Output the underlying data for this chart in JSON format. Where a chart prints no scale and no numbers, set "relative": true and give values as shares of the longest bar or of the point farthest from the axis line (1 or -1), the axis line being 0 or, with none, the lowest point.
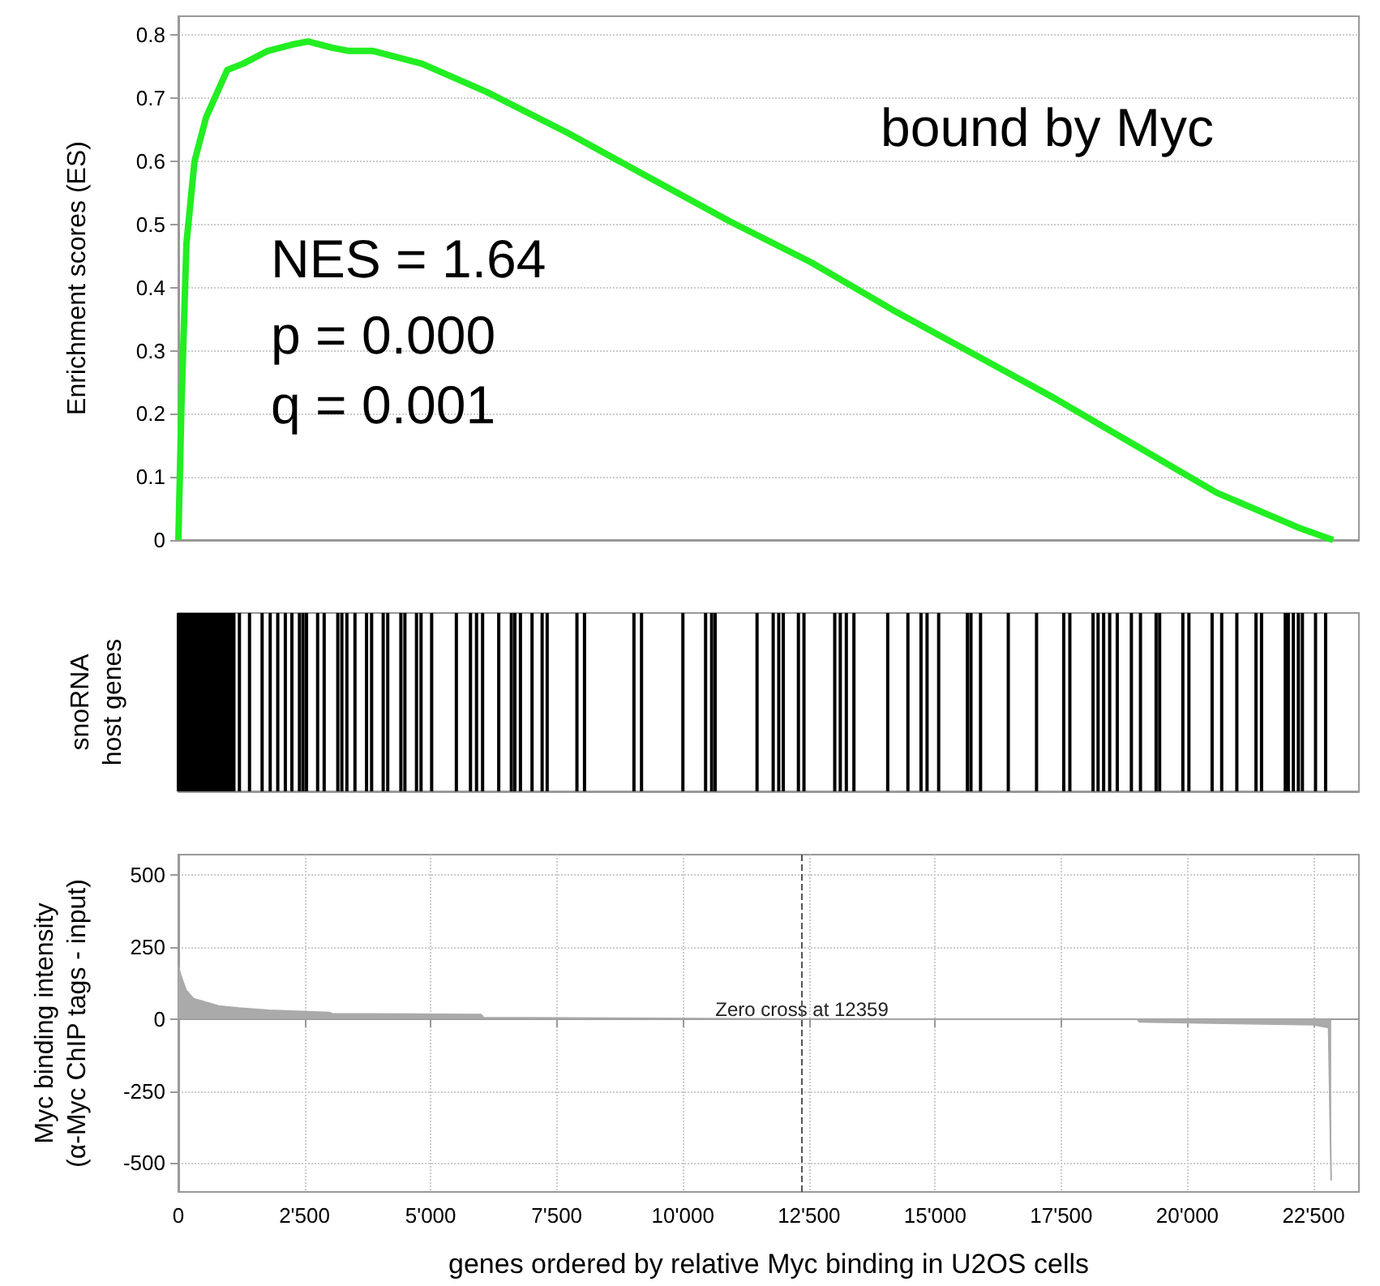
{
  "chart_data": [
    {
      "type": "line",
      "ylabel": "Enrichment scores (ES)",
      "annotations": [
        "bound by Myc",
        "NES = 1.64",
        "p = 0.000",
        "q = 0.001"
      ],
      "x": [
        0,
        60,
        160,
        320,
        550,
        970,
        1290,
        1770,
        2250,
        2570,
        3050,
        3380,
        3860,
        4820,
        6110,
        7720,
        9320,
        10930,
        12540,
        14150,
        15760,
        17360,
        18970,
        20580,
        22190,
        22890
      ],
      "series": [
        {
          "color": "#22ee22",
          "values": [
            0,
            0.21,
            0.47,
            0.6,
            0.67,
            0.745,
            0.755,
            0.775,
            0.785,
            0.79,
            0.78,
            0.775,
            0.775,
            0.755,
            0.71,
            0.645,
            0.575,
            0.505,
            0.44,
            0.365,
            0.295,
            0.225,
            0.15,
            0.075,
            0.02,
            0
          ]
        }
      ],
      "xlim": [
        0,
        23400
      ],
      "ylim": [
        0,
        0.83
      ],
      "yticks": [
        0,
        0.1,
        0.2,
        0.3,
        0.4,
        0.5,
        0.6,
        0.7,
        0.8
      ],
      "grid": true,
      "tick_labels": "y",
      "marker": "none",
      "line_style": "solid"
    },
    {
      "type": "bar",
      "ylabel": "snoRNA\nhost genes",
      "relative": true,
      "tick_labels": false,
      "xlim": [
        0,
        23400
      ],
      "x": [
        0,
        50,
        100,
        150,
        200,
        250,
        300,
        350,
        400,
        450,
        500,
        550,
        600,
        650,
        700,
        750,
        800,
        850,
        900,
        950,
        1000,
        1050,
        1100,
        1210,
        1410,
        1660,
        1820,
        1970,
        2120,
        2250,
        2400,
        2470,
        2540,
        2760,
        2890,
        3160,
        3240,
        3340,
        3500,
        3730,
        3830,
        4060,
        4150,
        4410,
        4490,
        4720,
        4810,
        5020,
        5510,
        5790,
        5910,
        6030,
        6350,
        6600,
        6670,
        6780,
        7010,
        7210,
        7310,
        7900,
        8050,
        9030,
        9180,
        10000,
        10450,
        10570,
        10640,
        11470,
        11790,
        11900,
        11990,
        12290,
        12400,
        13010,
        13120,
        13240,
        13390,
        14060,
        14460,
        14720,
        14840,
        15070,
        15640,
        15710,
        15900,
        16450,
        17010,
        17550,
        17670,
        18130,
        18230,
        18340,
        18460,
        18610,
        18890,
        19070,
        19380,
        19450,
        19910,
        20030,
        20490,
        20680,
        20980,
        21360,
        21470,
        21940,
        22000,
        22100,
        22200,
        22280,
        22540,
        22740
      ],
      "series": [
        {
          "color": "#000000",
          "values": [
            1,
            1,
            1,
            1,
            1,
            1,
            1,
            1,
            1,
            1,
            1,
            1,
            1,
            1,
            1,
            1,
            1,
            1,
            1,
            1,
            1,
            1,
            1,
            1,
            1,
            1,
            1,
            1,
            1,
            1,
            1,
            1,
            1,
            1,
            1,
            1,
            1,
            1,
            1,
            1,
            1,
            1,
            1,
            1,
            1,
            1,
            1,
            1,
            1,
            1,
            1,
            1,
            1,
            1,
            1,
            1,
            1,
            1,
            1,
            1,
            1,
            1,
            1,
            1,
            1,
            1,
            1,
            1,
            1,
            1,
            1,
            1,
            1,
            1,
            1,
            1,
            1,
            1,
            1,
            1,
            1,
            1,
            1,
            1,
            1,
            1,
            1,
            1,
            1,
            1,
            1,
            1,
            1,
            1,
            1,
            1,
            1,
            1,
            1,
            1,
            1,
            1,
            1,
            1,
            1,
            1,
            1,
            1,
            1,
            1,
            1,
            1
          ]
        }
      ]
    },
    {
      "type": "area",
      "ylabel": "Myc binding intensity\n(α-Myc ChIP tags - input)",
      "xlabel": "genes ordered by relative Myc binding in U2OS cells",
      "x": [
        0,
        50,
        150,
        300,
        500,
        800,
        1200,
        1800,
        3000,
        3050,
        6000,
        6050,
        12359,
        19000,
        19050,
        22500,
        22800,
        22850
      ],
      "series": [
        {
          "color": "#aaaaaa",
          "values": [
            180,
            150,
            100,
            70,
            60,
            45,
            38,
            30,
            22,
            18,
            15,
            5,
            0,
            0,
            -10,
            -20,
            -30,
            -560
          ]
        }
      ],
      "xlim": [
        0,
        23400
      ],
      "ylim": [
        -600,
        570
      ],
      "yticks": [
        -500,
        -250,
        0,
        250,
        500
      ],
      "xticks": [
        0,
        {
          "value": 2500,
          "label": "2'500"
        },
        {
          "value": 5000,
          "label": "5'000"
        },
        {
          "value": 7500,
          "label": "7'500"
        },
        {
          "value": 10000,
          "label": "10'000"
        },
        {
          "value": 12500,
          "label": "12'500"
        },
        {
          "value": 15000,
          "label": "15'000"
        },
        {
          "value": 17500,
          "label": "17'500"
        },
        {
          "value": 20000,
          "label": "20'000"
        },
        {
          "value": 22500,
          "label": "22'500"
        }
      ],
      "grid": true,
      "ref_lines": [
        {
          "axis": "x",
          "value": 12359,
          "label": "Zero cross at 12359",
          "color": "#555555",
          "line_style": "dashed"
        }
      ]
    }
  ]
}
